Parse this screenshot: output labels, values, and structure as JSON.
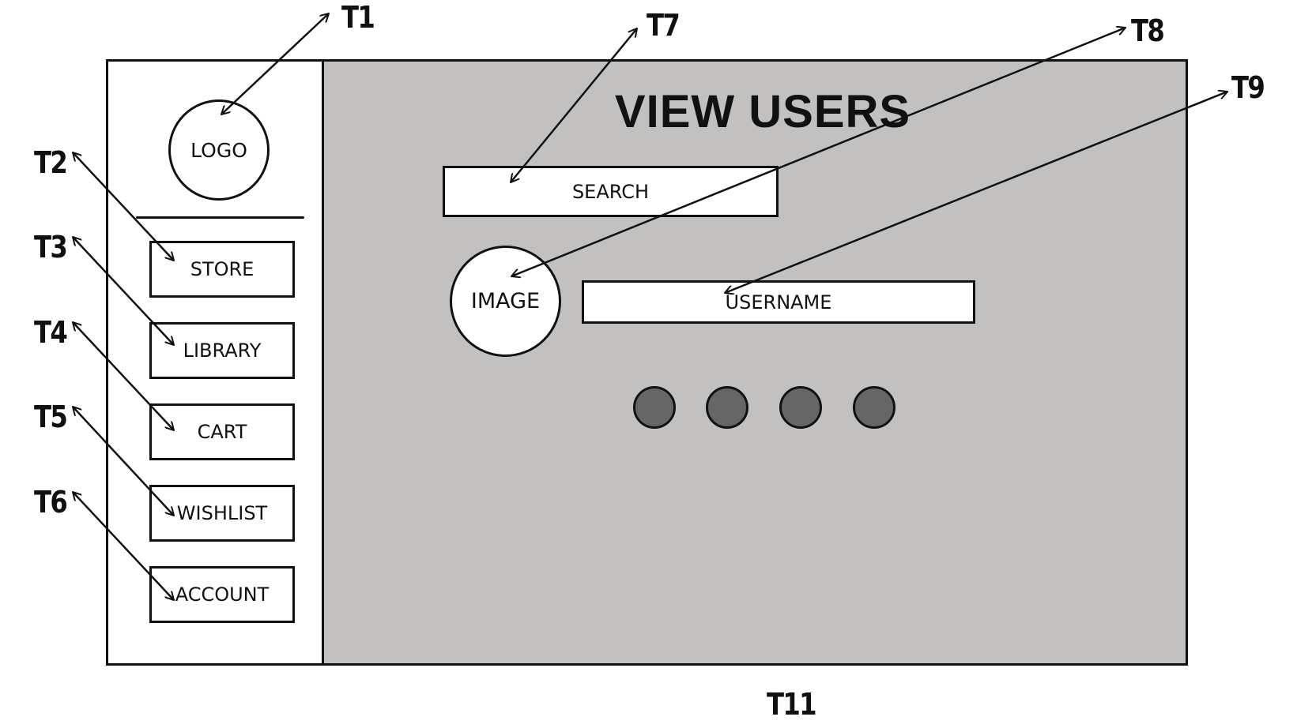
{
  "sidebar": {
    "logo": "LOGO",
    "nav": [
      "STORE",
      "LIBRARY",
      "CART",
      "WISHLIST",
      "ACCOUNT"
    ]
  },
  "main": {
    "title": "VIEW USERS",
    "search": "SEARCH",
    "image": "IMAGE",
    "username": "USERNAME",
    "dot_count": 4
  },
  "callouts": {
    "t1": "T1",
    "t2": "T2",
    "t3": "T3",
    "t4": "T4",
    "t5": "T5",
    "t6": "T6",
    "t7": "T7",
    "t8": "T8",
    "t9": "T9",
    "t11": "T11"
  },
  "colors": {
    "main_bg": "#c2c1bf",
    "dot_fill": "#666666",
    "line": "#111111"
  }
}
